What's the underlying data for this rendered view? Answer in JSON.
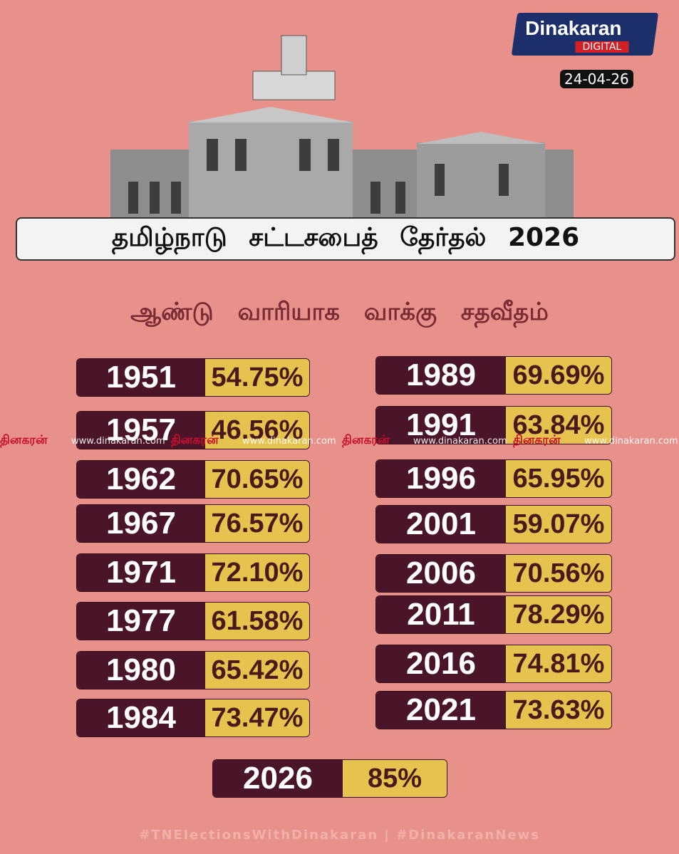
{
  "header": {
    "brand": "Dinakaran",
    "brand_sub": "DIGITAL",
    "date": "24-04-26",
    "title": "தமிழ்நாடு சட்டசபைத் தேர்தல் 2026"
  },
  "subtitle": "ஆண்டு வாரியாக வாக்கு சதவீதம்",
  "left_rows": [
    [
      "1951",
      "54.75%"
    ],
    [
      "1957",
      "46.56%"
    ],
    [
      "1962",
      "70.65%"
    ],
    [
      "1967",
      "76.57%"
    ],
    [
      "1971",
      "72.10%"
    ],
    [
      "1977",
      "61.58%"
    ],
    [
      "1980",
      "65.42%"
    ],
    [
      "1984",
      "73.47%"
    ]
  ],
  "right_rows": [
    [
      "1989",
      "69.69%"
    ],
    [
      "1991",
      "63.84%"
    ],
    [
      "1996",
      "65.95%"
    ],
    [
      "2001",
      "59.07%"
    ],
    [
      "2006",
      "70.56%"
    ],
    [
      "2011",
      "78.29%"
    ],
    [
      "2016",
      "74.81%"
    ],
    [
      "2021",
      "73.63%"
    ]
  ],
  "final_row": [
    "2026",
    "85%"
  ],
  "watermark": {
    "brand": "தினகரன்",
    "url": "www.dinakaran.com"
  },
  "footer": "#TNElectionsWithDinakaran | #DinakaranNews"
}
